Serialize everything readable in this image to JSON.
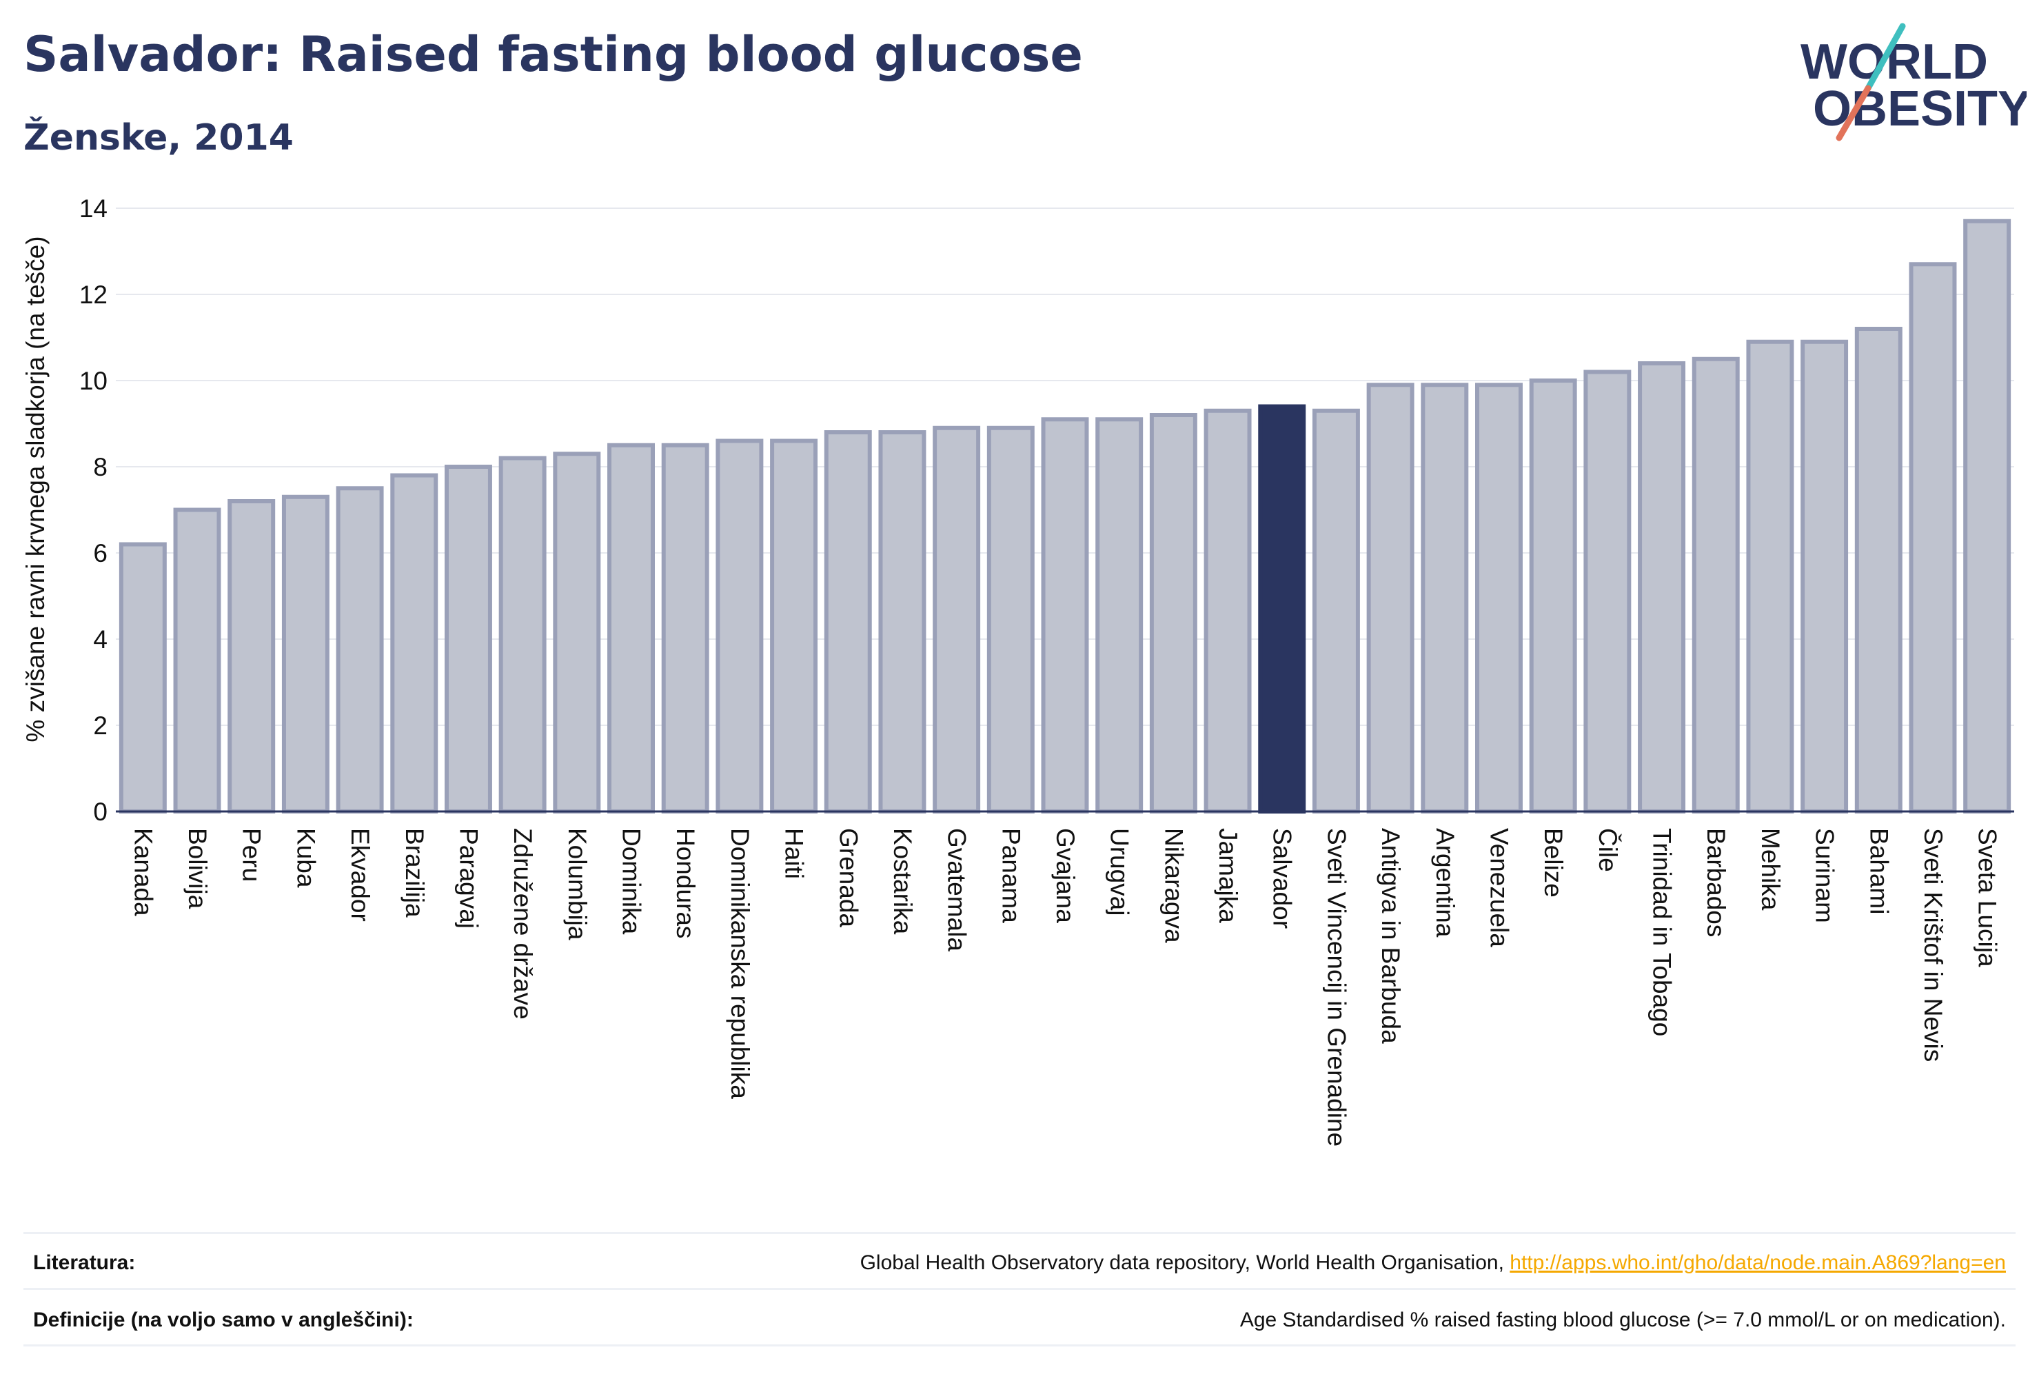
{
  "header": {
    "title": "Salvador: Raised fasting blood glucose",
    "subtitle": "Ženske, 2014"
  },
  "logo": {
    "line1": "WORLD",
    "line2": "OBESITY",
    "accent_colors": [
      "#3fbfbf",
      "#e2735a"
    ],
    "text_color": "#2a3560"
  },
  "colors": {
    "bar_default": "#bfc3cf",
    "bar_default_stroke": "#9aa0b8",
    "bar_highlight": "#2a3560",
    "axis": "#2a3560",
    "grid": "#e6e8ee"
  },
  "chart_data": {
    "type": "bar",
    "title": "",
    "xlabel": "",
    "ylabel": "% zvišane ravni krvnega sladkorja (na tešče)",
    "ylim": [
      0,
      14
    ],
    "yticks": [
      0,
      2,
      4,
      6,
      8,
      10,
      12,
      14
    ],
    "grid": true,
    "highlight": "Salvador",
    "categories": [
      "Kanada",
      "Bolivija",
      "Peru",
      "Kuba",
      "Ekvador",
      "Brazilija",
      "Paragvaj",
      "Združene države",
      "Kolumbija",
      "Dominika",
      "Honduras",
      "Dominikanska republika",
      "Haiti",
      "Grenada",
      "Kostarika",
      "Gvatemala",
      "Panama",
      "Gvajana",
      "Urugvaj",
      "Nikaragva",
      "Jamajka",
      "Salvador",
      "Sveti Vincencij in Grenadine",
      "Antigva in Barbuda",
      "Argentina",
      "Venezuela",
      "Belize",
      "Čile",
      "Trinidad in Tobago",
      "Barbados",
      "Mehika",
      "Surinam",
      "Bahami",
      "Sveti Krištof in Nevis",
      "Sveta Lucija"
    ],
    "values": [
      6.2,
      7.0,
      7.2,
      7.3,
      7.5,
      7.8,
      8.0,
      8.2,
      8.3,
      8.5,
      8.5,
      8.6,
      8.6,
      8.8,
      8.8,
      8.9,
      8.9,
      9.1,
      9.1,
      9.2,
      9.3,
      9.4,
      9.3,
      9.9,
      9.9,
      9.9,
      10.0,
      10.2,
      10.4,
      10.5,
      10.9,
      10.9,
      11.2,
      12.7,
      13.7
    ]
  },
  "footer": {
    "sources_label": "Literatura:",
    "sources_text": "Global Health Observatory data repository, World Health Organisation, ",
    "sources_link": "http://apps.who.int/gho/data/node.main.A869?lang=en",
    "definitions_label": "Definicije (na voljo samo v angleščini):",
    "definitions_text": "Age Standardised % raised fasting blood glucose (>= 7.0 mmol/L or on medication)."
  }
}
